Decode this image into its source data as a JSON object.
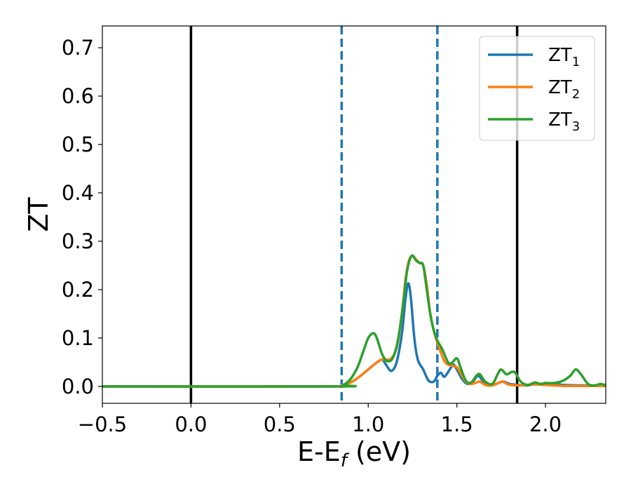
{
  "chart_data": {
    "type": "line",
    "title": "",
    "xlabel": {
      "main": "E-E",
      "sub": "f",
      "suffix": " (eV)"
    },
    "ylabel": "ZT",
    "xlim": [
      -0.5,
      2.34
    ],
    "ylim": [
      -0.035,
      0.745
    ],
    "xticks": [
      -0.5,
      0.0,
      0.5,
      1.0,
      1.5,
      2.0
    ],
    "xtick_labels": [
      "−0.5",
      "0.0",
      "0.5",
      "1.0",
      "1.5",
      "2.0"
    ],
    "yticks": [
      0.0,
      0.1,
      0.2,
      0.3,
      0.4,
      0.5,
      0.6,
      0.7
    ],
    "ytick_labels": [
      "0.0",
      "0.1",
      "0.2",
      "0.3",
      "0.4",
      "0.5",
      "0.6",
      "0.7"
    ],
    "grid": false,
    "legend_position": "top-right",
    "vlines": [
      {
        "x": 0.0,
        "style": "solid",
        "color": "#000000"
      },
      {
        "x": 0.85,
        "style": "dashed",
        "color": "#1f77b4"
      },
      {
        "x": 1.39,
        "style": "dashed",
        "color": "#1f77b4"
      },
      {
        "x": 1.84,
        "style": "solid",
        "color": "#000000"
      }
    ],
    "series": [
      {
        "name": "ZT",
        "sub": "1",
        "color": "#1f77b4",
        "points": [
          [
            -0.5,
            0
          ],
          [
            0.8,
            0
          ],
          [
            0.85,
            0.002
          ],
          [
            0.9,
            0.008
          ],
          [
            0.95,
            0.02
          ],
          [
            1.0,
            0.035
          ],
          [
            1.05,
            0.05
          ],
          [
            1.08,
            0.055
          ],
          [
            1.1,
            0.045
          ],
          [
            1.13,
            0.032
          ],
          [
            1.16,
            0.05
          ],
          [
            1.19,
            0.11
          ],
          [
            1.21,
            0.18
          ],
          [
            1.225,
            0.213
          ],
          [
            1.24,
            0.185
          ],
          [
            1.26,
            0.1
          ],
          [
            1.28,
            0.055
          ],
          [
            1.31,
            0.035
          ],
          [
            1.34,
            0.012
          ],
          [
            1.37,
            0.01
          ],
          [
            1.39,
            0.022
          ],
          [
            1.41,
            0.028
          ],
          [
            1.43,
            0.02
          ],
          [
            1.46,
            0.035
          ],
          [
            1.48,
            0.045
          ],
          [
            1.5,
            0.035
          ],
          [
            1.53,
            0.015
          ],
          [
            1.56,
            0.005
          ],
          [
            1.59,
            0.01
          ],
          [
            1.62,
            0.022
          ],
          [
            1.65,
            0.01
          ],
          [
            1.68,
            0.003
          ],
          [
            1.72,
            0.005
          ],
          [
            1.76,
            0.01
          ],
          [
            1.8,
            0.005
          ],
          [
            1.85,
            0.003
          ],
          [
            1.9,
            0.002
          ],
          [
            1.95,
            0.006
          ],
          [
            2.0,
            0.003
          ],
          [
            2.05,
            0.005
          ],
          [
            2.1,
            0.003
          ],
          [
            2.2,
            0.002
          ],
          [
            2.34,
            0.002
          ]
        ]
      },
      {
        "name": "ZT",
        "sub": "2",
        "color": "#ff7f0e",
        "points": [
          [
            -0.5,
            0
          ],
          [
            0.8,
            0
          ],
          [
            0.85,
            0.002
          ],
          [
            0.9,
            0.008
          ],
          [
            0.95,
            0.02
          ],
          [
            1.0,
            0.035
          ],
          [
            1.05,
            0.05
          ],
          [
            1.08,
            0.056
          ],
          [
            1.1,
            0.055
          ],
          [
            1.13,
            0.058
          ],
          [
            1.16,
            0.08
          ],
          [
            1.19,
            0.15
          ],
          [
            1.21,
            0.22
          ],
          [
            1.23,
            0.26
          ],
          [
            1.25,
            0.27
          ],
          [
            1.27,
            0.262
          ],
          [
            1.29,
            0.255
          ],
          [
            1.31,
            0.25
          ],
          [
            1.33,
            0.21
          ],
          [
            1.35,
            0.15
          ],
          [
            1.37,
            0.115
          ],
          [
            1.39,
            0.09
          ],
          [
            1.41,
            0.07
          ],
          [
            1.43,
            0.052
          ],
          [
            1.45,
            0.045
          ],
          [
            1.48,
            0.042
          ],
          [
            1.5,
            0.04
          ],
          [
            1.52,
            0.028
          ],
          [
            1.55,
            0.01
          ],
          [
            1.58,
            0.005
          ],
          [
            1.61,
            0.008
          ],
          [
            1.63,
            0.01
          ],
          [
            1.66,
            0.003
          ],
          [
            1.7,
            0.002
          ],
          [
            1.74,
            0.008
          ],
          [
            1.76,
            0.01
          ],
          [
            1.79,
            0.004
          ],
          [
            1.84,
            0.002
          ],
          [
            1.9,
            0.003
          ],
          [
            1.95,
            0.004
          ],
          [
            2.0,
            0.003
          ],
          [
            2.1,
            0.001
          ],
          [
            2.2,
            0.001
          ],
          [
            2.34,
            0.001
          ]
        ]
      },
      {
        "name": "ZT",
        "sub": "3",
        "color": "#2ca02c",
        "points": [
          [
            -0.5,
            0
          ],
          [
            0.82,
            0
          ],
          [
            0.86,
            0.003
          ],
          [
            0.9,
            0.015
          ],
          [
            0.94,
            0.04
          ],
          [
            0.97,
            0.07
          ],
          [
            1.0,
            0.1
          ],
          [
            1.03,
            0.11
          ],
          [
            1.05,
            0.098
          ],
          [
            1.08,
            0.065
          ],
          [
            1.11,
            0.052
          ],
          [
            1.14,
            0.06
          ],
          [
            1.17,
            0.1
          ],
          [
            1.2,
            0.18
          ],
          [
            1.22,
            0.24
          ],
          [
            1.245,
            0.27
          ],
          [
            1.27,
            0.26
          ],
          [
            1.29,
            0.255
          ],
          [
            1.31,
            0.25
          ],
          [
            1.33,
            0.2
          ],
          [
            1.35,
            0.15
          ],
          [
            1.37,
            0.115
          ],
          [
            1.39,
            0.095
          ],
          [
            1.42,
            0.075
          ],
          [
            1.45,
            0.05
          ],
          [
            1.47,
            0.048
          ],
          [
            1.5,
            0.058
          ],
          [
            1.52,
            0.04
          ],
          [
            1.55,
            0.012
          ],
          [
            1.58,
            0.008
          ],
          [
            1.61,
            0.022
          ],
          [
            1.63,
            0.025
          ],
          [
            1.66,
            0.01
          ],
          [
            1.7,
            0.005
          ],
          [
            1.73,
            0.025
          ],
          [
            1.75,
            0.035
          ],
          [
            1.78,
            0.025
          ],
          [
            1.81,
            0.03
          ],
          [
            1.83,
            0.028
          ],
          [
            1.86,
            0.01
          ],
          [
            1.9,
            0.003
          ],
          [
            1.94,
            0.008
          ],
          [
            1.97,
            0.005
          ],
          [
            2.0,
            0.007
          ],
          [
            2.05,
            0.007
          ],
          [
            2.1,
            0.012
          ],
          [
            2.14,
            0.022
          ],
          [
            2.17,
            0.035
          ],
          [
            2.2,
            0.025
          ],
          [
            2.24,
            0.005
          ],
          [
            2.28,
            0.002
          ],
          [
            2.31,
            0.005
          ],
          [
            2.34,
            0.002
          ]
        ]
      }
    ]
  }
}
